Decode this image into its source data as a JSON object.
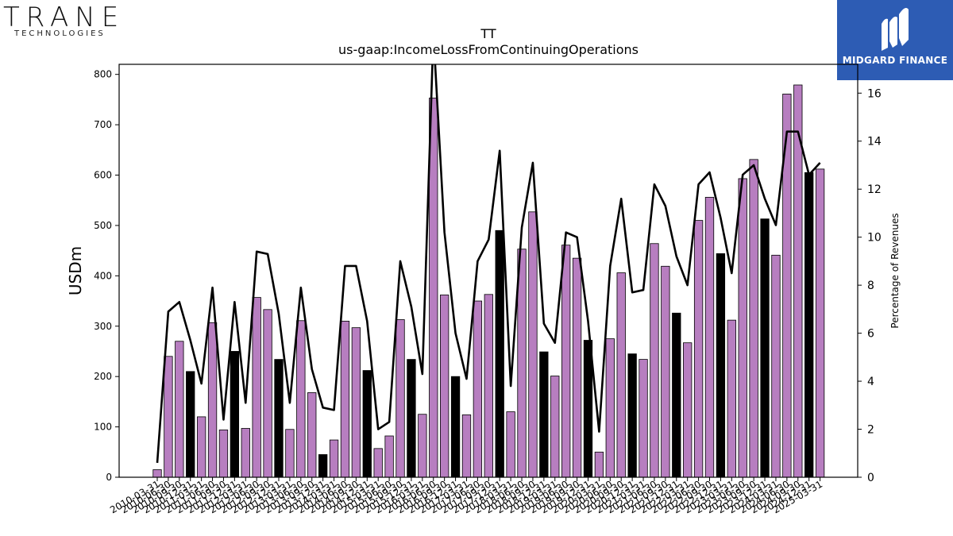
{
  "header": {
    "ticker": "TT",
    "metric": "us-gaap:IncomeLossFromContinuingOperations"
  },
  "logos": {
    "left_name": "TRANE",
    "left_sub": "TECHNOLOGIES",
    "right_name": "MIDGARD FINANCE"
  },
  "colors": {
    "bar_quarter": "#b77ec0",
    "bar_annual": "#000000",
    "line": "#000000",
    "logo_bg": "#2d5cb4"
  },
  "chart_data": {
    "type": "bar",
    "title": "TT\nus-gaap:IncomeLossFromContinuingOperations",
    "ylabel": "USDm",
    "y2label": "Percentage of Revenues",
    "ylim": [
      0,
      820
    ],
    "y2lim": [
      0,
      17.2
    ],
    "yticks": [
      0,
      100,
      200,
      300,
      400,
      500,
      600,
      700,
      800
    ],
    "y2ticks": [
      0,
      2,
      4,
      6,
      8,
      10,
      12,
      14,
      16
    ],
    "categories": [
      "2010-03-31",
      "2010-06-30",
      "2010-09-30",
      "2010-12-31",
      "2011-03-31",
      "2011-06-30",
      "2011-09-30",
      "2011-12-31",
      "2012-03-31",
      "2012-06-30",
      "2012-09-30",
      "2012-12-31",
      "2013-03-31",
      "2013-06-30",
      "2013-09-30",
      "2013-12-31",
      "2014-03-31",
      "2014-06-30",
      "2014-09-30",
      "2014-12-31",
      "2015-03-31",
      "2015-06-30",
      "2015-09-30",
      "2015-12-31",
      "2016-03-31",
      "2016-06-30",
      "2016-09-30",
      "2016-12-31",
      "2017-03-31",
      "2017-06-30",
      "2017-09-30",
      "2017-12-31",
      "2018-03-31",
      "2018-06-30",
      "2018-09-30",
      "2018-12-31",
      "2019-03-31",
      "2019-06-30",
      "2019-09-30",
      "2019-12-31",
      "2020-03-31",
      "2020-06-30",
      "2020-09-30",
      "2020-12-31",
      "2021-03-31",
      "2021-06-30",
      "2021-09-30",
      "2021-12-31",
      "2022-03-31",
      "2022-06-30",
      "2022-09-30",
      "2022-12-31",
      "2023-03-31",
      "2023-06-30",
      "2023-09-30",
      "2023-12-31",
      "2024-03-31",
      "2024-06-30",
      "2024-09-30",
      "2024-12-31",
      "2025-03-31"
    ],
    "series": [
      {
        "kind": "bar",
        "axis": "left",
        "values": [
          15,
          240,
          270,
          210,
          120,
          307,
          94,
          250,
          97,
          357,
          333,
          234,
          95,
          311,
          168,
          45,
          74,
          310,
          297,
          212,
          57,
          82,
          313,
          234,
          125,
          753,
          362,
          200,
          124,
          350,
          363,
          490,
          130,
          453,
          527,
          249,
          201,
          461,
          435,
          272,
          50,
          275,
          406,
          245,
          234,
          464,
          419,
          326,
          267,
          510,
          556,
          444,
          312,
          593,
          631,
          513,
          441,
          761,
          779,
          605,
          612
        ],
        "annual": [
          false,
          false,
          false,
          true,
          false,
          false,
          false,
          true,
          false,
          false,
          false,
          true,
          false,
          false,
          false,
          true,
          false,
          false,
          false,
          true,
          false,
          false,
          false,
          true,
          false,
          false,
          false,
          true,
          false,
          false,
          false,
          true,
          false,
          false,
          false,
          true,
          false,
          false,
          false,
          true,
          false,
          false,
          false,
          true,
          false,
          false,
          false,
          true,
          false,
          false,
          false,
          true,
          false,
          false,
          false,
          true,
          false,
          false,
          false,
          true,
          false
        ]
      },
      {
        "kind": "line",
        "axis": "right",
        "values": [
          0.6,
          6.9,
          7.3,
          5.7,
          3.9,
          7.9,
          2.4,
          7.3,
          3.1,
          9.4,
          9.3,
          6.8,
          3.1,
          7.9,
          4.5,
          2.9,
          2.8,
          8.8,
          8.8,
          6.5,
          2.0,
          2.3,
          9.0,
          7.1,
          4.3,
          18.5,
          10.2,
          6.0,
          4.1,
          9.0,
          9.9,
          13.6,
          3.8,
          10.4,
          13.1,
          6.4,
          5.6,
          10.2,
          10.0,
          6.5,
          1.9,
          8.8,
          11.6,
          7.7,
          7.8,
          12.2,
          11.3,
          9.2,
          8.0,
          12.2,
          12.7,
          10.8,
          8.5,
          12.6,
          13.0,
          11.6,
          10.5,
          14.4,
          14.4,
          12.6,
          13.1
        ]
      }
    ]
  }
}
